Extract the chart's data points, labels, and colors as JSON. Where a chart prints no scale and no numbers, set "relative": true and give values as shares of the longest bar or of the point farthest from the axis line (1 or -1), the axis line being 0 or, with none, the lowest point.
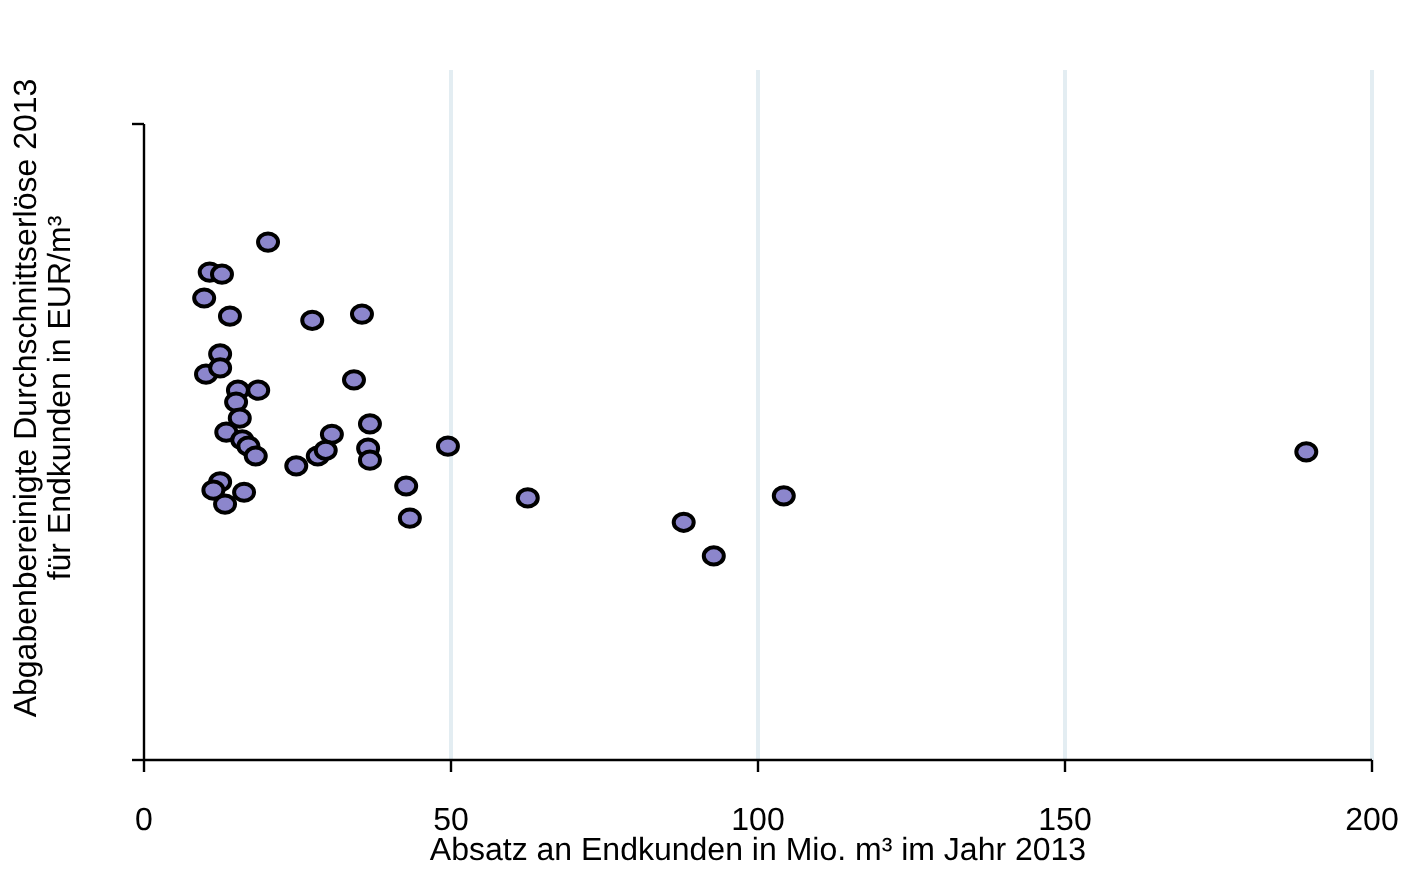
{
  "chart_data": {
    "type": "scatter",
    "relative": true,
    "xlabel": "Absatz an Endkunden in Mio. m³ im Jahr 2013",
    "ylabel": "Abgabenbereinigte Durchschnittserlöse 2013\nfür Endkunden in EUR/m³",
    "xlim": [
      0,
      200
    ],
    "xticks": [
      0,
      50,
      100,
      150,
      200
    ],
    "grid": "x",
    "marker": "circle",
    "series": [
      {
        "color": "#8c86cc",
        "x": [
          20.2,
          10.7,
          12.7,
          9.8,
          14.0,
          27.4,
          35.5,
          12.4,
          10.1,
          12.4,
          34.2,
          15.3,
          18.6,
          15.0,
          15.6,
          36.8,
          13.4,
          30.6,
          16.0,
          17.0,
          36.5,
          18.2,
          36.8,
          28.3,
          29.6,
          24.8,
          49.5,
          12.4,
          11.3,
          13.2,
          16.3,
          42.7,
          43.3,
          62.5,
          87.9,
          92.8,
          104.2,
          189.3
        ],
        "values": [
          1.0,
          0.942,
          0.938,
          0.892,
          0.857,
          0.849,
          0.861,
          0.784,
          0.745,
          0.757,
          0.734,
          0.714,
          0.714,
          0.691,
          0.66,
          0.649,
          0.633,
          0.629,
          0.618,
          0.606,
          0.602,
          0.587,
          0.579,
          0.587,
          0.598,
          0.568,
          0.606,
          0.537,
          0.521,
          0.494,
          0.517,
          0.529,
          0.467,
          0.506,
          0.459,
          0.394,
          0.51,
          0.595
        ]
      }
    ]
  }
}
